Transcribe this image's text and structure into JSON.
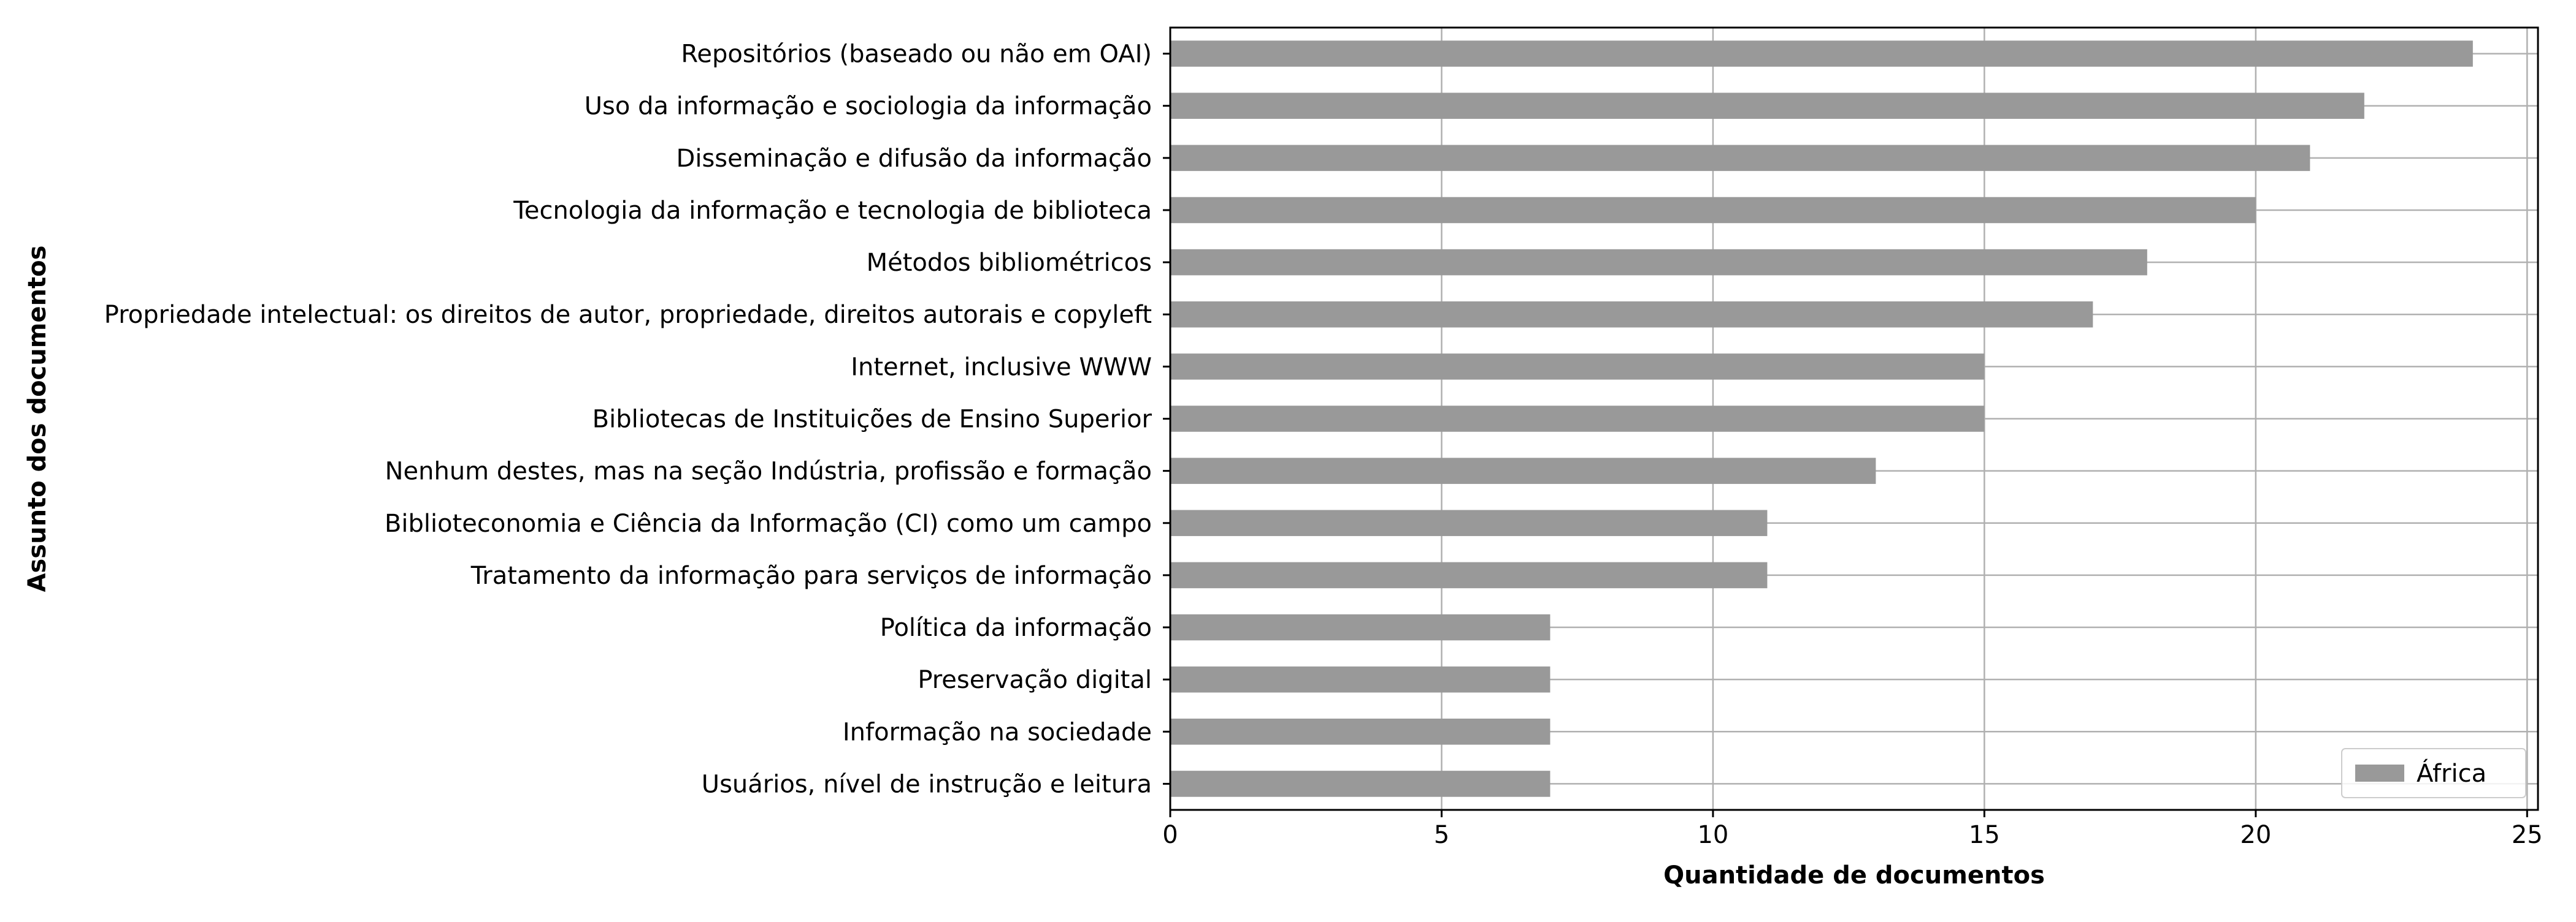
{
  "chart_data": {
    "type": "bar",
    "orientation": "horizontal",
    "title": "",
    "xlabel": "Quantidade de documentos",
    "ylabel": "Assunto dos documentos",
    "xlim": [
      0,
      25.2
    ],
    "xticks": [
      0,
      5,
      10,
      15,
      20,
      25
    ],
    "grid": true,
    "legend_position": "lower-right",
    "categories": [
      "Repositórios (baseado ou não em OAI)",
      "Uso da informação e sociologia da informação",
      "Disseminação e difusão da informação",
      "Tecnologia da informação e tecnologia de biblioteca",
      "Métodos bibliométricos",
      "Propriedade intelectual: os direitos de autor, propriedade, direitos autorais e copyleft",
      "Internet, inclusive WWW",
      "Bibliotecas de Instituições de Ensino Superior",
      "Nenhum destes, mas na seção Indústria, profissão e formação",
      "Biblioteconomia e Ciência da Informação (CI) como um campo",
      "Tratamento da informação para serviços de informação",
      "Política da informação",
      "Preservação digital",
      "Informação na sociedade",
      "Usuários, nível de instrução e leitura"
    ],
    "series": [
      {
        "name": "África",
        "color": "#999999",
        "values": [
          24,
          22,
          21,
          20,
          18,
          17,
          15,
          15,
          13,
          11,
          11,
          7,
          7,
          7,
          7
        ]
      }
    ]
  }
}
